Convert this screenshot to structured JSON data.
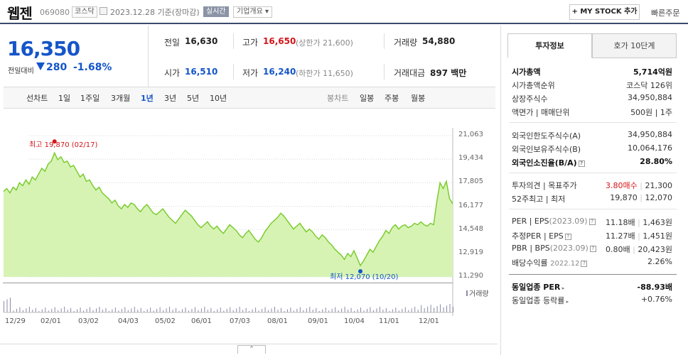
{
  "header": {
    "name": "웹젠",
    "code": "069080",
    "market": "코스닥",
    "date": "2023.12.28 기준(장마감)",
    "realtime": "실시간",
    "company_info": "기업개요",
    "my_stock": "+ MY STOCK 추가",
    "quick_order": "빠른주문"
  },
  "quote": {
    "price": "16,350",
    "change_label": "전일대비",
    "change": "280",
    "change_pct": "-1.68%",
    "prev_label": "전일",
    "prev": "16,630",
    "high_label": "고가",
    "high": "16,650",
    "upper_limit": "(상한가 21,600)",
    "volume_label": "거래량",
    "volume": "54,880",
    "open_label": "시가",
    "open": "16,510",
    "low_label": "저가",
    "low": "16,240",
    "lower_limit": "(하한가 11,650)",
    "amount_label": "거래대금",
    "amount": "897 백만"
  },
  "chart_tabs": {
    "line_label": "선차트",
    "periods": [
      "1일",
      "1주일",
      "3개월",
      "1년",
      "3년",
      "5년",
      "10년"
    ],
    "selected": "1년",
    "candle_label": "봉차트",
    "candles": [
      "일봉",
      "주봉",
      "월봉"
    ]
  },
  "chart_data": {
    "type": "area",
    "y_ticks": [
      "21,063",
      "19,434",
      "17,805",
      "16,177",
      "14,548",
      "12,919",
      "11,290"
    ],
    "ylim": [
      11290,
      21063
    ],
    "x_ticks": [
      "12/29",
      "02/01",
      "03/02",
      "04/03",
      "05/02",
      "06/01",
      "07/03",
      "08/01",
      "09/01",
      "10/04",
      "11/01",
      "12/01"
    ],
    "high_annotation": "최고 19,870 (02/17)",
    "low_annotation": "최저 12,070 (10/20)",
    "volume_label": "거래량",
    "line_color": "#7ccc2f",
    "fill_color": "#d6f3b4",
    "series": [
      {
        "values": [
          17200,
          17400,
          17100,
          17500,
          17300,
          17800,
          17600,
          18000,
          17700,
          18200,
          18000,
          18400,
          18800,
          18600,
          19100,
          19300,
          19870,
          19400,
          19600,
          19200,
          19300,
          18900,
          19000,
          18600,
          18200,
          18400,
          17900,
          18000,
          17600,
          17300,
          17500,
          17100,
          16900,
          16700,
          16400,
          16600,
          16200,
          16000,
          16300,
          16100,
          16400,
          16300,
          16000,
          15800,
          16100,
          16300,
          16000,
          15700,
          15600,
          15800,
          16000,
          15700,
          15400,
          15200,
          15000,
          15300,
          15600,
          15900,
          15700,
          15500,
          15200,
          14900,
          14700,
          14900,
          15100,
          14800,
          14600,
          14800,
          14500,
          14300,
          14600,
          14900,
          14700,
          14500,
          14200,
          14000,
          14300,
          14500,
          14200,
          13900,
          13700,
          14000,
          14400,
          14700,
          15000,
          15200,
          15400,
          15700,
          15500,
          15200,
          14900,
          14600,
          14800,
          15000,
          14700,
          14400,
          14600,
          14400,
          14100,
          13900,
          14200,
          14000,
          13700,
          13500,
          13200,
          13000,
          12800,
          12500,
          12900,
          12700,
          13100,
          12600,
          12070,
          12400,
          12800,
          13200,
          13000,
          13400,
          13800,
          14100,
          14500,
          14300,
          14700,
          14900,
          14600,
          14800,
          14900,
          14700,
          14800,
          15000,
          14900,
          15100,
          14900,
          14800,
          15000,
          14900,
          16500,
          17800,
          17400,
          17900,
          16700,
          16350
        ]
      }
    ]
  },
  "side": {
    "tabs": [
      "투자정보",
      "호가 10단계"
    ],
    "market_cap_label": "시가총액",
    "market_cap": "5,714억원",
    "rank_label": "시가총액순위",
    "rank": "코스닥 126위",
    "shares_label": "상장주식수",
    "shares": "34,950,884",
    "par_label": "액면가 | 매매단위",
    "par": "500원 | 1주",
    "foreign_limit_label": "외국인한도주식수(A)",
    "foreign_limit": "34,950,884",
    "foreign_hold_label": "외국인보유주식수(B)",
    "foreign_hold": "10,064,176",
    "foreign_ratio_label": "외국인소진율(B/A)",
    "foreign_ratio": "28.80%",
    "opinion_label": "투자의견 | 목표주가",
    "opinion": "3.80매수",
    "target": "21,300",
    "w52_label": "52주최고 | 최저",
    "w52_high": "19,870",
    "w52_low": "12,070",
    "per_label": "PER | EPS",
    "per_period": "(2023.09)",
    "per": "11.18배",
    "eps": "1,463원",
    "est_per_label": "추정PER | EPS",
    "est_per": "11.27배",
    "est_eps": "1,451원",
    "pbr_label": "PBR | BPS",
    "pbr_period": "(2023.09)",
    "pbr": "0.80배",
    "bps": "20,423원",
    "div_label": "배당수익률",
    "div_period": "2022.12",
    "div": "2.26%",
    "ind_per_label": "동일업종 PER",
    "ind_per": "-88.93배",
    "ind_rate_label": "동일업종 등락률",
    "ind_rate": "+0.76%"
  }
}
